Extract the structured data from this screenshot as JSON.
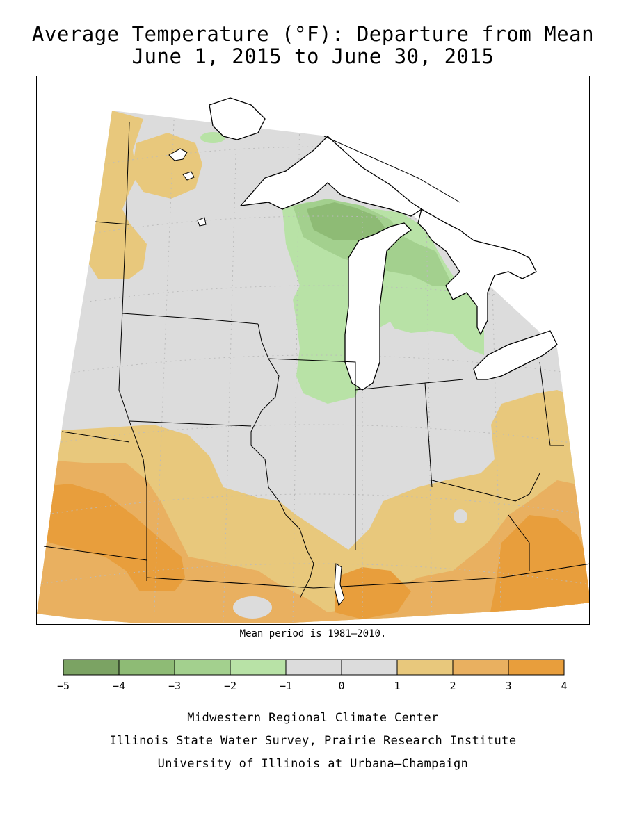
{
  "title": {
    "line1": "Average Temperature (°F): Departure from Mean",
    "line2": "June 1, 2015 to June 30, 2015"
  },
  "mean_note": "Mean period is 1981–2010.",
  "legend": {
    "ticks": [
      "−5",
      "−4",
      "−3",
      "−2",
      "−1",
      "0",
      "1",
      "2",
      "3",
      "4"
    ],
    "bins": [
      {
        "range": [
          -5,
          -4
        ],
        "color": "#7ba363"
      },
      {
        "range": [
          -4,
          -3
        ],
        "color": "#8ebb75"
      },
      {
        "range": [
          -3,
          -2
        ],
        "color": "#a3d08e"
      },
      {
        "range": [
          -2,
          -1
        ],
        "color": "#b8e2a6"
      },
      {
        "range": [
          -1,
          0
        ],
        "color": "#dcdcdc"
      },
      {
        "range": [
          0,
          1
        ],
        "color": "#dcdcdc"
      },
      {
        "range": [
          1,
          2
        ],
        "color": "#e8c87c"
      },
      {
        "range": [
          2,
          3
        ],
        "color": "#e9b060"
      },
      {
        "range": [
          3,
          4
        ],
        "color": "#e89e3c"
      }
    ]
  },
  "map": {
    "region": "Midwest United States",
    "water_color": "#ffffff",
    "dominant_pattern": "Near-normal (gray) over the upper and central Midwest; cooler (green) over Michigan's Upper Peninsula, northern Lower Michigan and eastern Wisconsin; warmer (orange) across the southern and western parts of the region"
  },
  "credits": {
    "line1": "Midwestern Regional Climate Center",
    "line2": "Illinois State Water Survey, Prairie Research Institute",
    "line3": "University of Illinois at Urbana–Champaign"
  }
}
